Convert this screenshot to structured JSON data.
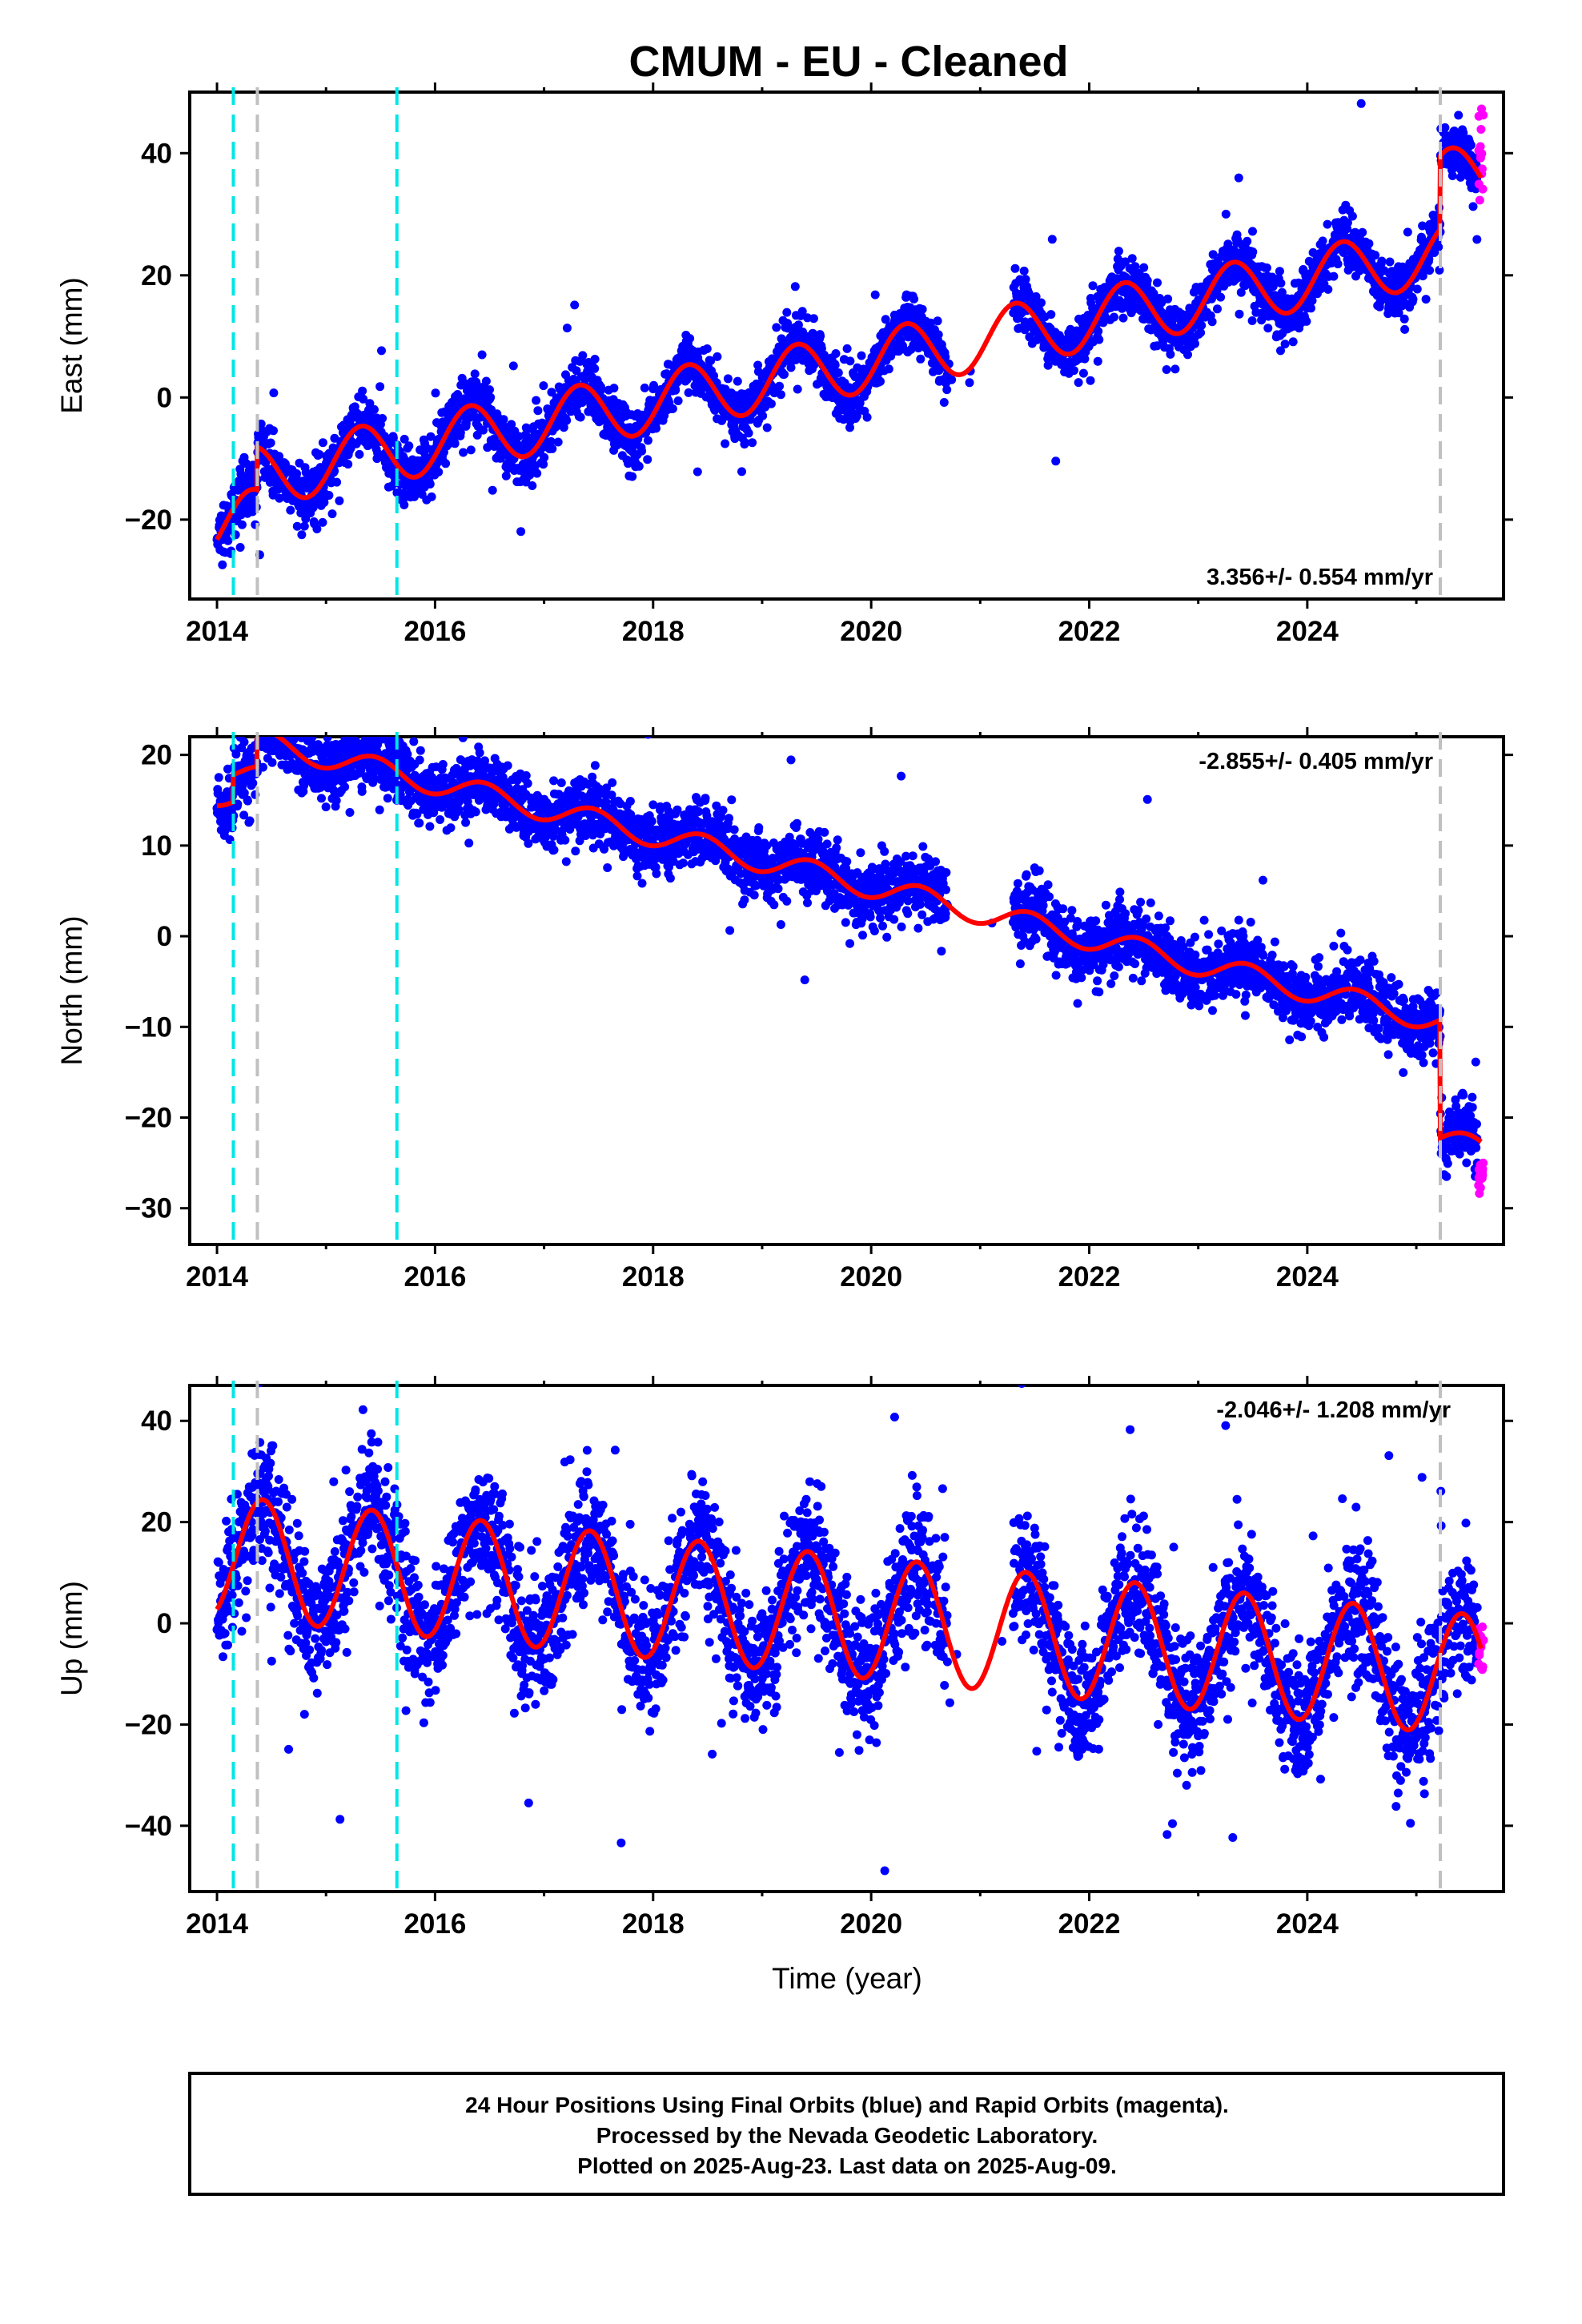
{
  "title": "CMUM  - EU - Cleaned",
  "xlabel": "Time (year)",
  "footer": {
    "line1": "24 Hour Positions Using Final Orbits (blue) and Rapid Orbits (magenta).",
    "line2": "Processed by the Nevada Geodetic Laboratory.",
    "line3": "Plotted on 2025-Aug-23. Last data on 2025-Aug-09."
  },
  "colors": {
    "final_orbits": "#0000ff",
    "rapid_orbits": "#ff00ff",
    "model": "#ff0000",
    "equipment_change": "#00e5e5",
    "earthquake": "#c0c0c0"
  },
  "chart_data": [
    {
      "type": "scatter",
      "component": "east",
      "ylabel": "East (mm)",
      "rate_label": "3.356+/- 0.554 mm/yr",
      "xlim": [
        2013.75,
        2025.8
      ],
      "ylim": [
        -33,
        50
      ],
      "xticks": [
        2014,
        2016,
        2018,
        2020,
        2022,
        2024
      ],
      "yticks": [
        -20,
        0,
        20,
        40
      ],
      "cyan_lines": [
        2014.15,
        2015.65
      ],
      "gray_lines": [
        2014.37,
        2025.22
      ],
      "model": {
        "start": 2014.0,
        "end": 2025.6,
        "trend": 3.356,
        "offset_at_2020": -1.0,
        "seasonal_amp": 5.0,
        "seasonal_peak": 0.32,
        "steps": [
          [
            2014.37,
            7.0
          ],
          [
            2025.22,
            12.0
          ]
        ]
      },
      "data_span": [
        2014.0,
        2025.56
      ],
      "gaps": [
        [
          2020.7,
          2021.3
        ]
      ],
      "noise_mm": 2.3,
      "outlier_fraction": 0.01,
      "rapid_span": [
        2025.57,
        2025.62
      ],
      "rapid_values": [
        30,
        48
      ]
    },
    {
      "type": "scatter",
      "component": "north",
      "ylabel": "North (mm)",
      "rate_label": "-2.855+/- 0.405 mm/yr",
      "xlim": [
        2013.75,
        2025.8
      ],
      "ylim": [
        -34,
        22
      ],
      "xticks": [
        2014,
        2016,
        2018,
        2020,
        2022,
        2024
      ],
      "yticks": [
        -30,
        -20,
        -10,
        0,
        10,
        20
      ],
      "cyan_lines": [
        2014.15,
        2015.65
      ],
      "gray_lines": [
        2014.37,
        2025.22
      ],
      "model": {
        "start": 2014.0,
        "end": 2025.6,
        "trend": -2.855,
        "offset_at_2020": -1.5,
        "seasonal_amp": 1.3,
        "seasonal_peak": 0.45,
        "steps": [
          [
            2014.15,
            3.0
          ],
          [
            2014.37,
            4.0
          ],
          [
            2025.22,
            -13.0
          ]
        ]
      },
      "data_span": [
        2014.0,
        2025.56
      ],
      "gaps": [
        [
          2020.7,
          2021.3
        ]
      ],
      "noise_mm": 1.8,
      "outlier_fraction": 0.01,
      "rapid_span": [
        2025.57,
        2025.62
      ],
      "rapid_values": [
        -29,
        -25
      ]
    },
    {
      "type": "scatter",
      "component": "up",
      "ylabel": "Up (mm)",
      "rate_label": "-2.046+/- 1.208 mm/yr",
      "xlim": [
        2013.75,
        2025.8
      ],
      "ylim": [
        -53,
        47
      ],
      "xticks": [
        2014,
        2016,
        2018,
        2020,
        2022,
        2024
      ],
      "yticks": [
        -40,
        -20,
        0,
        20,
        40
      ],
      "cyan_lines": [
        2014.15,
        2015.65
      ],
      "gray_lines": [
        2014.37,
        2025.22
      ],
      "model": {
        "start": 2014.0,
        "end": 2025.6,
        "trend": -2.046,
        "offset_at_2020": 1.0,
        "seasonal_amp": 12.0,
        "seasonal_peak": 0.42,
        "steps": []
      },
      "data_span": [
        2014.0,
        2025.56
      ],
      "gaps": [
        [
          2020.7,
          2021.3
        ]
      ],
      "noise_mm": 6.5,
      "outlier_fraction": 0.02,
      "rapid_span": [
        2025.57,
        2025.62
      ],
      "rapid_values": [
        -10,
        0
      ]
    }
  ]
}
